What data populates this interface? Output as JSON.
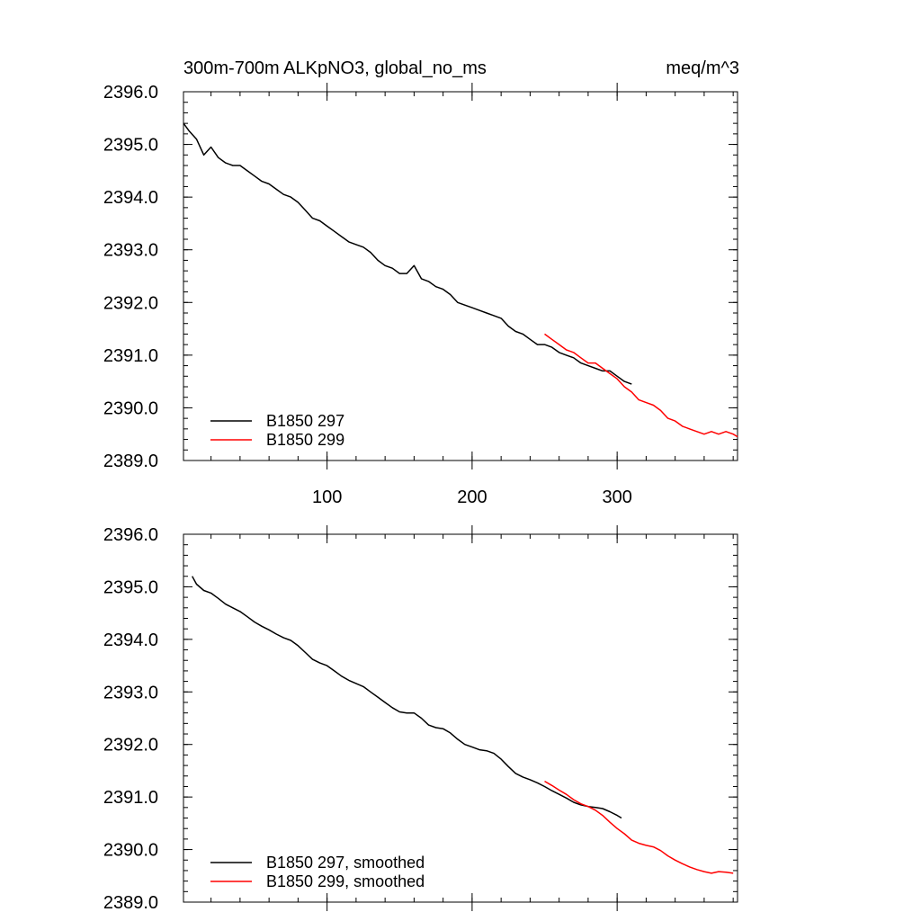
{
  "chart_data": [
    {
      "type": "line",
      "title": "300m-700m ALKpNO3, global_no_ms",
      "units": "meq/m^3",
      "xlim": [
        1,
        383
      ],
      "ylim": [
        2389.0,
        2396.0
      ],
      "x_ticks": [
        100,
        200,
        300
      ],
      "x_tick_labels": [
        "100",
        "200",
        "300"
      ],
      "y_ticks": [
        2389.0,
        2390.0,
        2391.0,
        2392.0,
        2393.0,
        2394.0,
        2395.0,
        2396.0
      ],
      "y_tick_labels": [
        "2389.0",
        "2390.0",
        "2391.0",
        "2392.0",
        "2393.0",
        "2394.0",
        "2395.0",
        "2396.0"
      ],
      "legend_position": "bottom-left",
      "series": [
        {
          "name": "B1850 297",
          "color": "#000000",
          "x": [
            1,
            5,
            10,
            15,
            20,
            25,
            30,
            35,
            40,
            45,
            50,
            55,
            60,
            65,
            70,
            75,
            80,
            85,
            90,
            95,
            100,
            105,
            110,
            115,
            120,
            125,
            130,
            135,
            140,
            145,
            150,
            155,
            160,
            165,
            170,
            175,
            180,
            185,
            190,
            195,
            200,
            205,
            210,
            215,
            220,
            225,
            230,
            235,
            240,
            245,
            250,
            255,
            260,
            265,
            270,
            275,
            280,
            285,
            290,
            295,
            300,
            305,
            310
          ],
          "y": [
            2395.4,
            2395.25,
            2395.1,
            2394.8,
            2394.95,
            2394.75,
            2394.65,
            2394.6,
            2394.6,
            2394.5,
            2394.4,
            2394.3,
            2394.25,
            2394.15,
            2394.05,
            2394.0,
            2393.9,
            2393.75,
            2393.6,
            2393.55,
            2393.45,
            2393.35,
            2393.25,
            2393.15,
            2393.1,
            2393.05,
            2392.95,
            2392.8,
            2392.7,
            2392.65,
            2392.55,
            2392.55,
            2392.7,
            2392.45,
            2392.4,
            2392.3,
            2392.25,
            2392.15,
            2392.0,
            2391.95,
            2391.9,
            2391.85,
            2391.8,
            2391.75,
            2391.7,
            2391.55,
            2391.45,
            2391.4,
            2391.3,
            2391.2,
            2391.2,
            2391.15,
            2391.05,
            2391.0,
            2390.95,
            2390.85,
            2390.8,
            2390.75,
            2390.7,
            2390.7,
            2390.6,
            2390.5,
            2390.45
          ]
        },
        {
          "name": "B1850 299",
          "color": "#ff0000",
          "x": [
            250,
            255,
            260,
            265,
            270,
            275,
            280,
            285,
            290,
            295,
            300,
            305,
            310,
            315,
            320,
            325,
            330,
            335,
            340,
            345,
            350,
            355,
            360,
            365,
            370,
            375,
            380,
            383
          ],
          "y": [
            2391.4,
            2391.3,
            2391.2,
            2391.1,
            2391.05,
            2390.95,
            2390.85,
            2390.85,
            2390.75,
            2390.65,
            2390.55,
            2390.4,
            2390.3,
            2390.15,
            2390.1,
            2390.05,
            2389.95,
            2389.8,
            2389.75,
            2389.65,
            2389.6,
            2389.55,
            2389.5,
            2389.55,
            2389.5,
            2389.55,
            2389.5,
            2389.45
          ]
        }
      ]
    },
    {
      "type": "line",
      "xlim": [
        1,
        383
      ],
      "ylim": [
        2389.0,
        2396.0
      ],
      "x_ticks": [
        100,
        200,
        300
      ],
      "y_ticks": [
        2389.0,
        2390.0,
        2391.0,
        2392.0,
        2393.0,
        2394.0,
        2395.0,
        2396.0
      ],
      "y_tick_labels": [
        "2389.0",
        "2390.0",
        "2391.0",
        "2392.0",
        "2393.0",
        "2394.0",
        "2395.0",
        "2396.0"
      ],
      "legend_position": "bottom-left",
      "series": [
        {
          "name": "B1850 297, smoothed",
          "color": "#000000",
          "x": [
            7,
            10,
            15,
            20,
            25,
            30,
            35,
            40,
            45,
            50,
            55,
            60,
            65,
            70,
            75,
            80,
            85,
            90,
            95,
            100,
            105,
            110,
            115,
            120,
            125,
            130,
            135,
            140,
            145,
            150,
            155,
            160,
            165,
            170,
            175,
            180,
            185,
            190,
            195,
            200,
            205,
            210,
            215,
            220,
            225,
            230,
            235,
            240,
            245,
            250,
            255,
            260,
            265,
            270,
            275,
            280,
            285,
            290,
            295,
            300,
            303
          ],
          "y": [
            2395.2,
            2395.05,
            2394.93,
            2394.88,
            2394.78,
            2394.67,
            2394.6,
            2394.53,
            2394.43,
            2394.33,
            2394.25,
            2394.18,
            2394.1,
            2394.03,
            2393.98,
            2393.88,
            2393.75,
            2393.62,
            2393.55,
            2393.5,
            2393.4,
            2393.3,
            2393.22,
            2393.16,
            2393.1,
            2393.0,
            2392.9,
            2392.8,
            2392.7,
            2392.62,
            2392.6,
            2392.6,
            2392.5,
            2392.37,
            2392.32,
            2392.3,
            2392.22,
            2392.1,
            2392.0,
            2391.95,
            2391.9,
            2391.88,
            2391.83,
            2391.72,
            2391.58,
            2391.45,
            2391.38,
            2391.33,
            2391.27,
            2391.2,
            2391.12,
            2391.05,
            2390.98,
            2390.9,
            2390.85,
            2390.82,
            2390.8,
            2390.78,
            2390.72,
            2390.65,
            2390.6
          ]
        },
        {
          "name": "B1850 299, smoothed",
          "color": "#ff0000",
          "x": [
            250,
            255,
            260,
            265,
            270,
            275,
            280,
            285,
            290,
            295,
            300,
            305,
            310,
            315,
            320,
            325,
            330,
            335,
            340,
            345,
            350,
            355,
            360,
            365,
            370,
            375,
            380
          ],
          "y": [
            2391.3,
            2391.22,
            2391.13,
            2391.05,
            2390.95,
            2390.87,
            2390.82,
            2390.75,
            2390.65,
            2390.52,
            2390.4,
            2390.3,
            2390.18,
            2390.12,
            2390.08,
            2390.05,
            2389.98,
            2389.88,
            2389.8,
            2389.73,
            2389.67,
            2389.62,
            2389.58,
            2389.55,
            2389.58,
            2389.57,
            2389.55
          ]
        }
      ]
    }
  ]
}
